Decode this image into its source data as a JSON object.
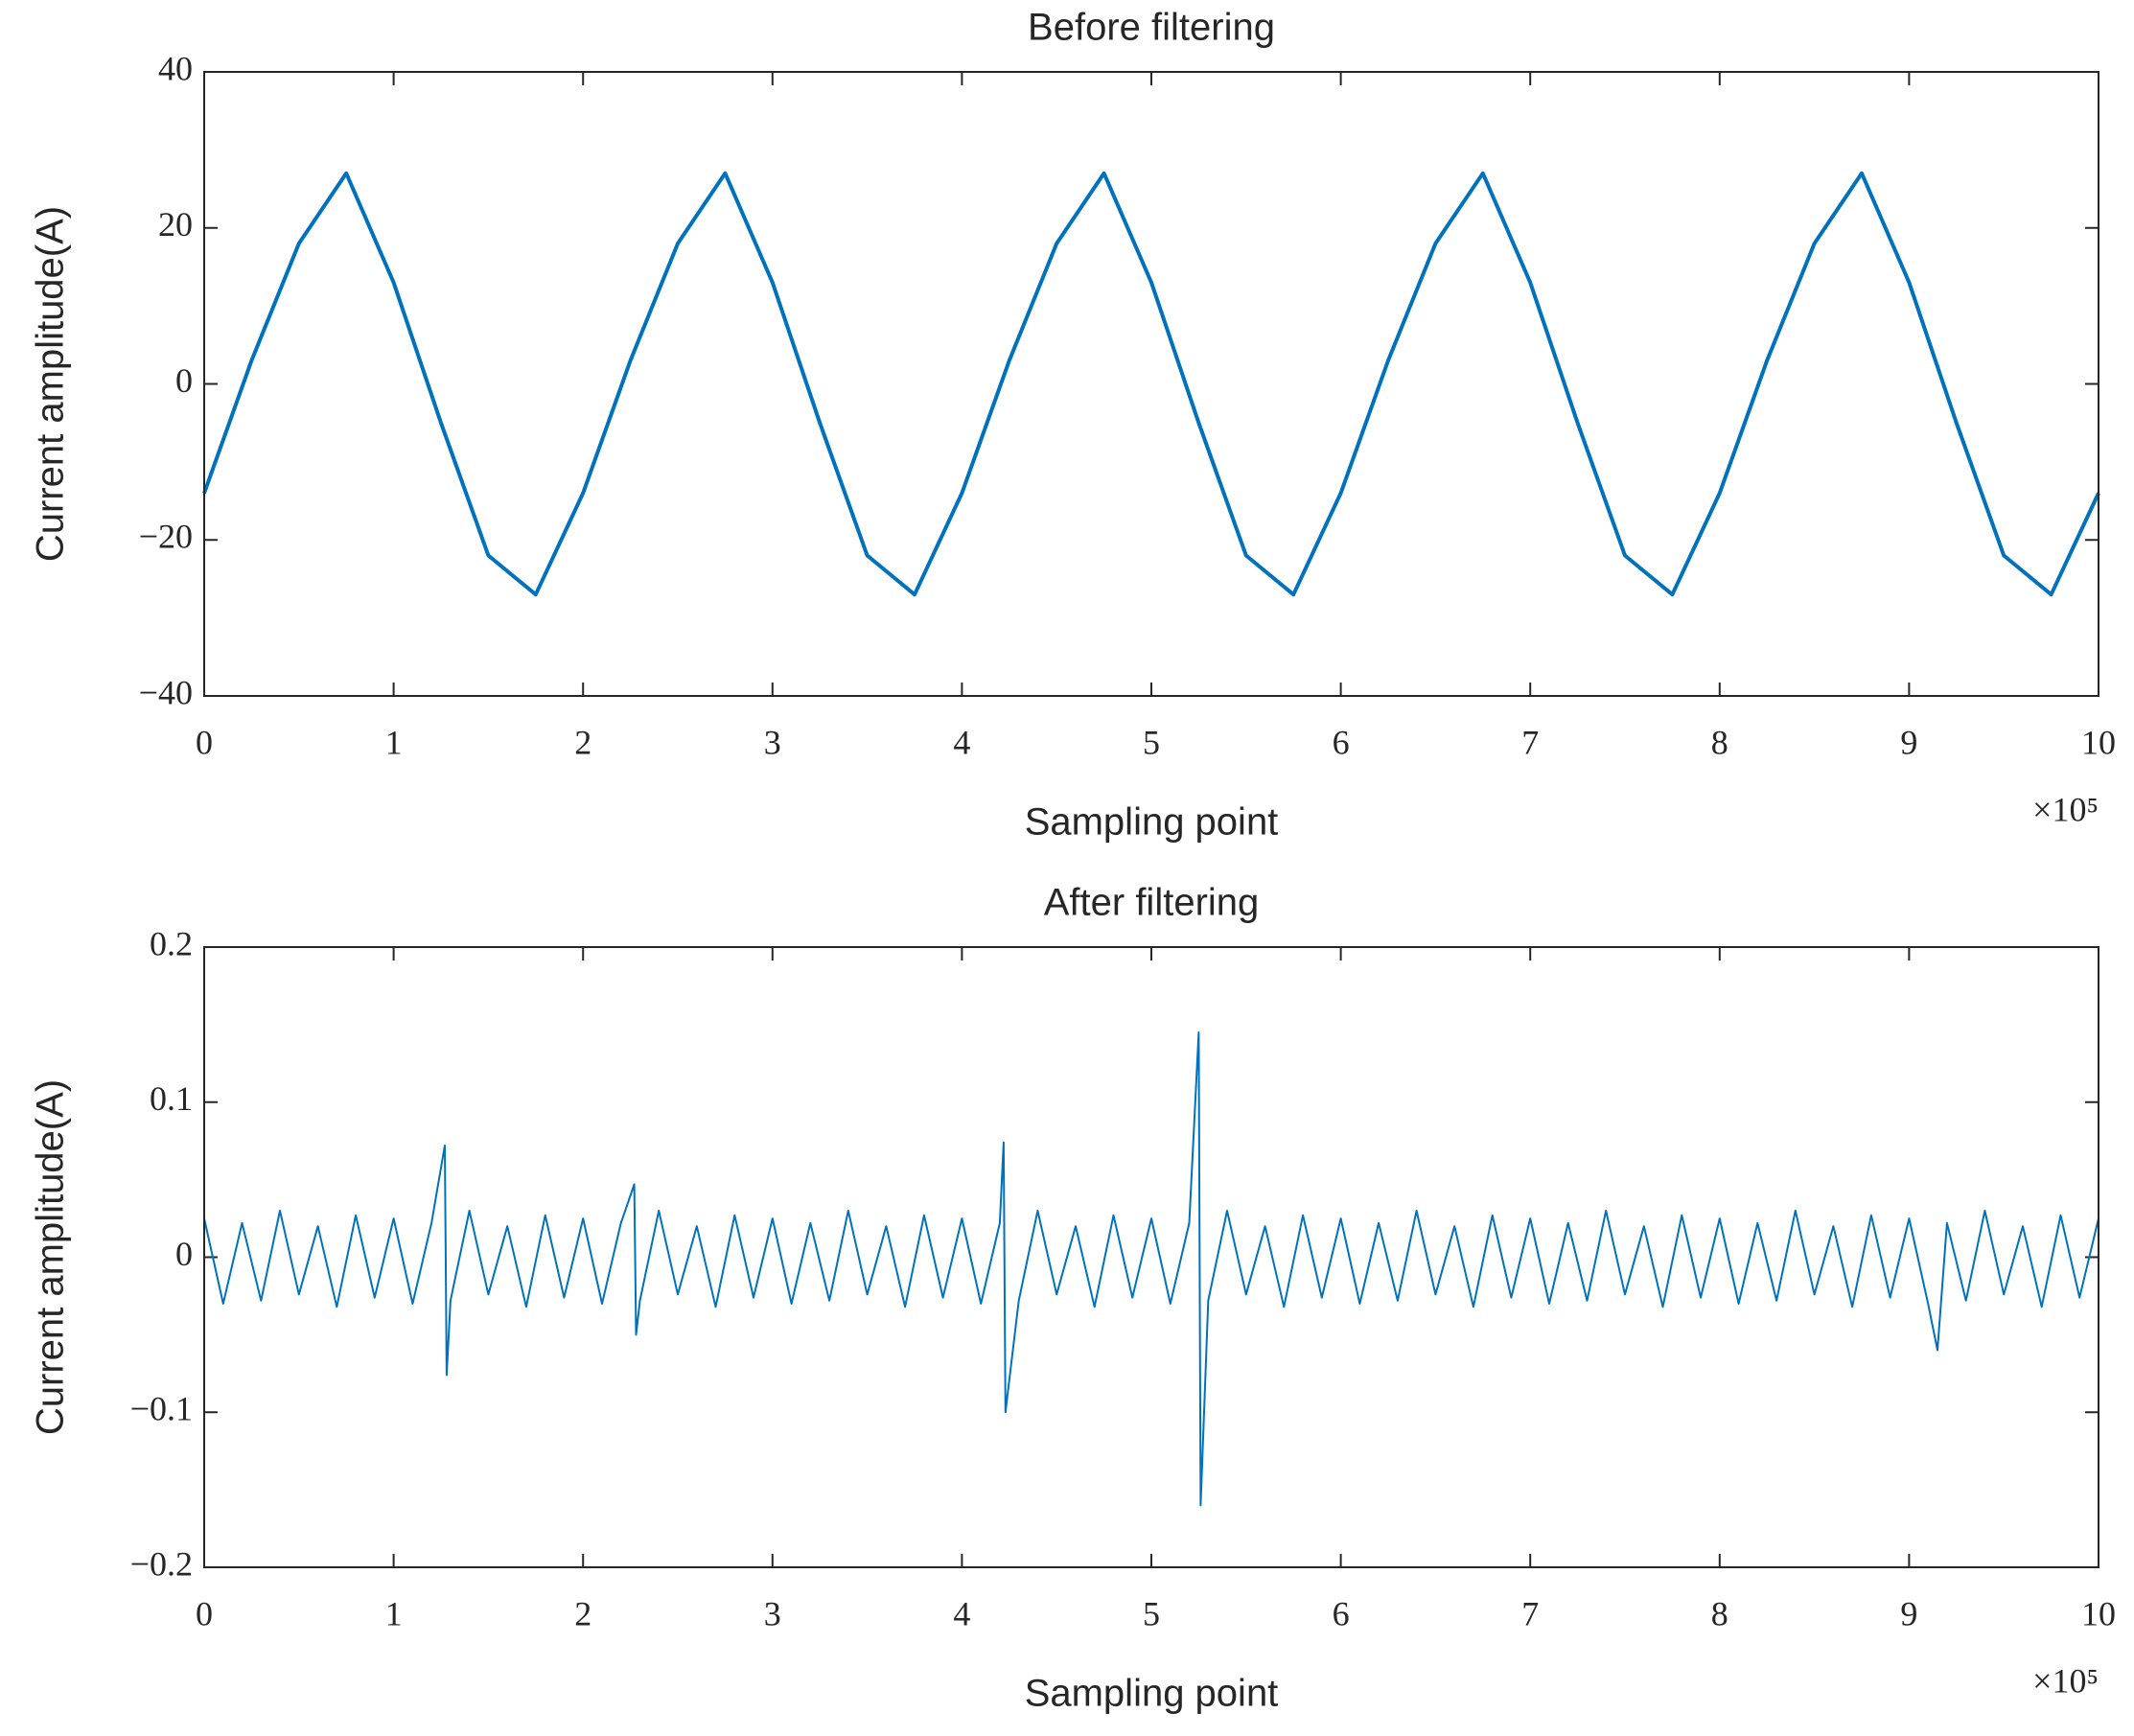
{
  "chart_data": [
    {
      "type": "line",
      "title": "Before filtering",
      "xlabel": "Sampling point",
      "ylabel": "Current amplitude(A)",
      "x_multiplier": "×10⁵",
      "color": "#0072bd",
      "x": [
        0,
        0.25,
        0.5,
        0.75,
        1,
        1.25,
        1.5,
        1.75,
        2,
        2.25,
        2.5,
        2.75,
        3,
        3.25,
        3.5,
        3.75,
        4,
        4.25,
        4.5,
        4.75,
        5,
        5.25,
        5.5,
        5.75,
        6,
        6.25,
        6.5,
        6.75,
        7,
        7.25,
        7.5,
        7.75,
        8,
        8.25,
        8.5,
        8.75,
        9,
        9.25,
        9.5,
        9.75,
        10
      ],
      "values": [
        -14,
        3,
        18,
        27,
        13,
        -5,
        -22,
        -27,
        -14,
        3,
        18,
        27,
        13,
        -5,
        -22,
        -27,
        -14,
        3,
        18,
        27,
        13,
        -5,
        -22,
        -27,
        -14,
        3,
        18,
        27,
        13,
        -5,
        -22,
        -27,
        -14,
        3,
        18,
        27,
        13,
        -5,
        -22,
        -27,
        -14
      ],
      "xlim": [
        0,
        10
      ],
      "xticks": [
        0,
        1,
        2,
        3,
        4,
        5,
        6,
        7,
        8,
        9,
        10
      ],
      "ylim": [
        -40,
        40
      ],
      "yticks": [
        {
          "value": -40,
          "label": "−40"
        },
        {
          "value": -20,
          "label": "−20"
        },
        0,
        20,
        40
      ]
    },
    {
      "type": "line",
      "title": "After filtering",
      "xlabel": "Sampling point",
      "ylabel": "Current amplitude(A)",
      "x_multiplier": "×10⁵",
      "color": "#0072bd",
      "x": [
        0,
        0.1,
        0.2,
        0.3,
        0.4,
        0.5,
        0.6,
        0.7,
        0.8,
        0.9,
        1.0,
        1.1,
        1.2,
        1.27,
        1.28,
        1.3,
        1.4,
        1.5,
        1.6,
        1.7,
        1.8,
        1.9,
        2.0,
        2.1,
        2.2,
        2.27,
        2.28,
        2.3,
        2.4,
        2.5,
        2.6,
        2.7,
        2.8,
        2.9,
        3.0,
        3.1,
        3.2,
        3.3,
        3.4,
        3.5,
        3.6,
        3.7,
        3.8,
        3.9,
        4.0,
        4.1,
        4.2,
        4.22,
        4.23,
        4.3,
        4.4,
        4.5,
        4.6,
        4.7,
        4.8,
        4.9,
        5.0,
        5.1,
        5.2,
        5.25,
        5.26,
        5.3,
        5.4,
        5.5,
        5.6,
        5.7,
        5.8,
        5.9,
        6.0,
        6.1,
        6.2,
        6.3,
        6.4,
        6.5,
        6.6,
        6.7,
        6.8,
        6.9,
        7.0,
        7.1,
        7.2,
        7.3,
        7.4,
        7.5,
        7.6,
        7.7,
        7.8,
        7.9,
        8.0,
        8.1,
        8.2,
        8.3,
        8.4,
        8.5,
        8.6,
        8.7,
        8.8,
        8.9,
        9.0,
        9.1,
        9.15,
        9.2,
        9.3,
        9.4,
        9.5,
        9.6,
        9.7,
        9.8,
        9.9,
        10.0
      ],
      "values": [
        0.025,
        -0.03,
        0.022,
        -0.028,
        0.03,
        -0.024,
        0.02,
        -0.032,
        0.027,
        -0.026,
        0.025,
        -0.03,
        0.022,
        0.072,
        -0.076,
        -0.028,
        0.03,
        -0.024,
        0.02,
        -0.032,
        0.027,
        -0.026,
        0.025,
        -0.03,
        0.022,
        0.047,
        -0.05,
        -0.028,
        0.03,
        -0.024,
        0.02,
        -0.032,
        0.027,
        -0.026,
        0.025,
        -0.03,
        0.022,
        -0.028,
        0.03,
        -0.024,
        0.02,
        -0.032,
        0.027,
        -0.026,
        0.025,
        -0.03,
        0.022,
        0.074,
        -0.1,
        -0.028,
        0.03,
        -0.024,
        0.02,
        -0.032,
        0.027,
        -0.026,
        0.025,
        -0.03,
        0.022,
        0.145,
        -0.16,
        -0.028,
        0.03,
        -0.024,
        0.02,
        -0.032,
        0.027,
        -0.026,
        0.025,
        -0.03,
        0.022,
        -0.028,
        0.03,
        -0.024,
        0.02,
        -0.032,
        0.027,
        -0.026,
        0.025,
        -0.03,
        0.022,
        -0.028,
        0.03,
        -0.024,
        0.02,
        -0.032,
        0.027,
        -0.026,
        0.025,
        -0.03,
        0.022,
        -0.028,
        0.03,
        -0.024,
        0.02,
        -0.032,
        0.027,
        -0.026,
        0.025,
        -0.03,
        -0.06,
        0.022,
        -0.028,
        0.03,
        -0.024,
        0.02,
        -0.032,
        0.027,
        -0.026,
        0.025
      ],
      "xlim": [
        0,
        10
      ],
      "xticks": [
        0,
        1,
        2,
        3,
        4,
        5,
        6,
        7,
        8,
        9,
        10
      ],
      "ylim": [
        -0.2,
        0.2
      ],
      "yticks": [
        {
          "value": -0.2,
          "label": "−0.2"
        },
        {
          "value": -0.1,
          "label": "−0.1"
        },
        0,
        0.1,
        0.2
      ]
    }
  ]
}
